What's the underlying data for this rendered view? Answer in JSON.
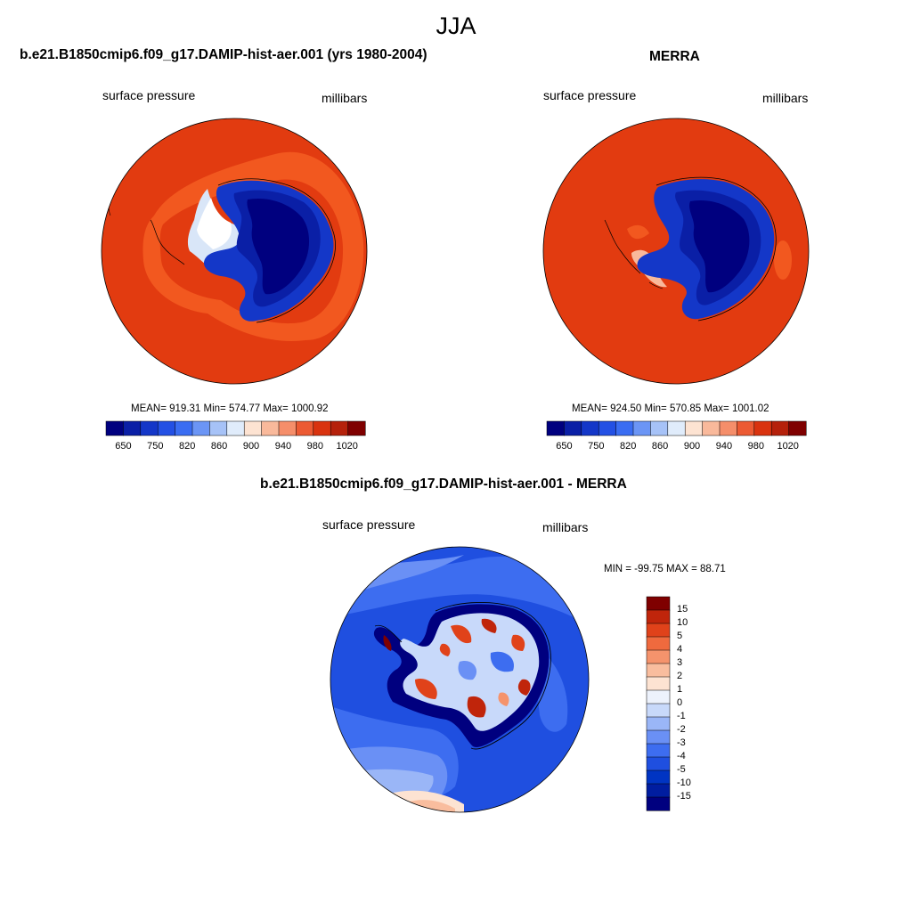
{
  "main_title": "JJA",
  "colors": {
    "abs_scale": [
      "#00007f",
      "#0a1fa6",
      "#1437c8",
      "#2350e4",
      "#3a6df2",
      "#6b95f5",
      "#a6c2f7",
      "#e0ecfb",
      "#fde3d2",
      "#f9b99b",
      "#f58e6a",
      "#ec5a33",
      "#d9330f",
      "#b5210b",
      "#7f0000"
    ],
    "diff_scale": [
      "#00007f",
      "#001da0",
      "#0034c3",
      "#1f4fe0",
      "#3d6df0",
      "#6a90f5",
      "#9ab6f7",
      "#c8d9fa",
      "#edf2fc",
      "#fde3d2",
      "#f9bd9e",
      "#f5936c",
      "#ef6a3e",
      "#e0421a",
      "#c0250b",
      "#7f0000"
    ],
    "ocean_model": "#e23b10",
    "ocean_model_band": "#f2581f"
  },
  "panels": {
    "model": {
      "title": "b.e21.B1850cmip6.f09_g17.DAMIP-hist-aer.001 (yrs 1980-2004)",
      "left_label": "surface pressure",
      "right_label": "millibars",
      "stats": "MEAN= 919.31  Min= 574.77  Max= 1000.92"
    },
    "obs": {
      "title": "MERRA",
      "left_label": "surface pressure",
      "right_label": "millibars",
      "stats": "MEAN= 924.50  Min= 570.85  Max= 1001.02"
    },
    "diff": {
      "title": "b.e21.B1850cmip6.f09_g17.DAMIP-hist-aer.001 - MERRA",
      "left_label": "surface pressure",
      "right_label": "millibars",
      "stats": "MIN = -99.75 MAX =  88.71"
    }
  },
  "colorbar_abs": {
    "labels": [
      "650",
      "750",
      "820",
      "860",
      "900",
      "940",
      "980",
      "1020"
    ]
  },
  "colorbar_diff": {
    "labels": [
      "15",
      "10",
      "5",
      "4",
      "3",
      "2",
      "1",
      "0",
      "-1",
      "-2",
      "-3",
      "-4",
      "-5",
      "-10",
      "-15"
    ]
  }
}
